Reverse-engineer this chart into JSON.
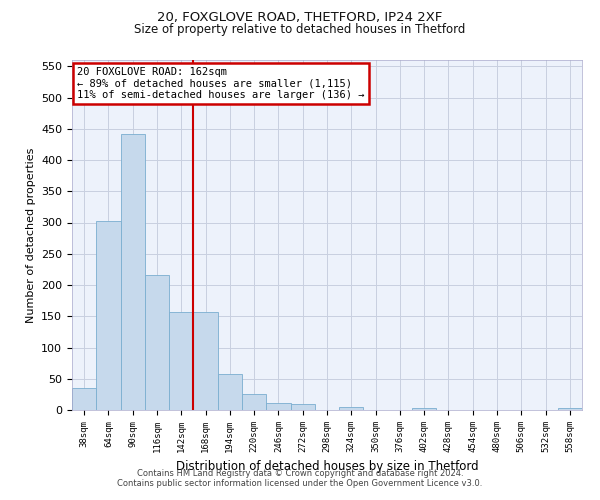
{
  "title1": "20, FOXGLOVE ROAD, THETFORD, IP24 2XF",
  "title2": "Size of property relative to detached houses in Thetford",
  "xlabel": "Distribution of detached houses by size in Thetford",
  "ylabel": "Number of detached properties",
  "bin_labels": [
    "38sqm",
    "64sqm",
    "90sqm",
    "116sqm",
    "142sqm",
    "168sqm",
    "194sqm",
    "220sqm",
    "246sqm",
    "272sqm",
    "298sqm",
    "324sqm",
    "350sqm",
    "376sqm",
    "402sqm",
    "428sqm",
    "454sqm",
    "480sqm",
    "506sqm",
    "532sqm",
    "558sqm"
  ],
  "bar_values": [
    36,
    303,
    441,
    216,
    157,
    157,
    57,
    25,
    11,
    9,
    0,
    5,
    0,
    0,
    3,
    0,
    0,
    0,
    0,
    0,
    3
  ],
  "bar_color": "#c6d9ec",
  "bar_edgecolor": "#7aaed0",
  "annotation_text": "20 FOXGLOVE ROAD: 162sqm\n← 89% of detached houses are smaller (1,115)\n11% of semi-detached houses are larger (136) →",
  "annotation_box_color": "#ffffff",
  "annotation_box_edgecolor": "#cc0000",
  "vline_color": "#cc0000",
  "vline_x_index": 5,
  "ylim": [
    0,
    560
  ],
  "yticks": [
    0,
    50,
    100,
    150,
    200,
    250,
    300,
    350,
    400,
    450,
    500,
    550
  ],
  "footer1": "Contains HM Land Registry data © Crown copyright and database right 2024.",
  "footer2": "Contains public sector information licensed under the Open Government Licence v3.0.",
  "background_color": "#edf2fb",
  "grid_color": "#c8cfe0"
}
